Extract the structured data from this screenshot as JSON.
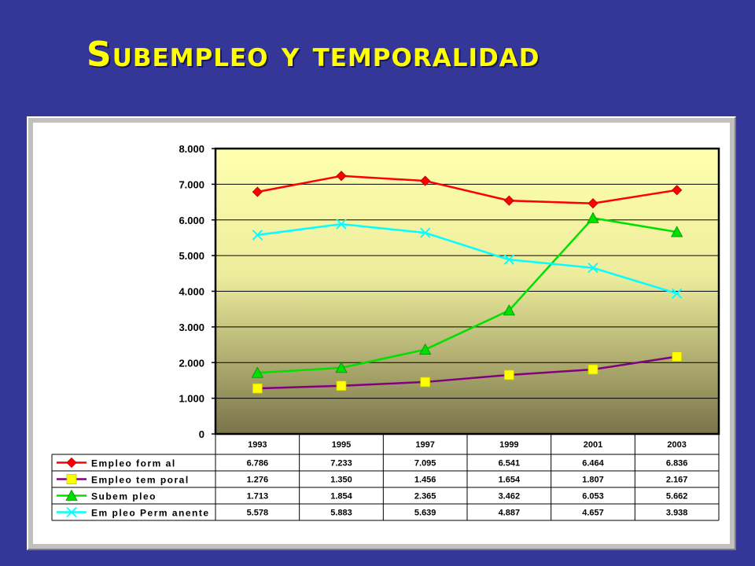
{
  "slide": {
    "title": "Subempleo y temporalidad"
  },
  "chart_data": {
    "type": "line",
    "title": "",
    "xlabel": "",
    "ylabel": "",
    "categories": [
      "1993",
      "1995",
      "1997",
      "1999",
      "2001",
      "2003"
    ],
    "ylim": [
      0,
      8000
    ],
    "yticks": [
      0,
      1000,
      2000,
      3000,
      4000,
      5000,
      6000,
      7000,
      8000
    ],
    "ytick_labels": [
      "0",
      "1.000",
      "2.000",
      "3.000",
      "4.000",
      "5.000",
      "6.000",
      "7.000",
      "8.000"
    ],
    "grid": true,
    "legend": "data-table-below",
    "series": [
      {
        "name": "Empleo form al",
        "color": "#ff0000",
        "marker": "diamond",
        "values": [
          6786,
          7233,
          7095,
          6541,
          6464,
          6836
        ],
        "labels": [
          "6.786",
          "7.233",
          "7.095",
          "6.541",
          "6.464",
          "6.836"
        ]
      },
      {
        "name": "Empleo tem poral",
        "color": "#800080",
        "marker_color": "#ffff00",
        "marker": "square",
        "values": [
          1276,
          1350,
          1456,
          1654,
          1807,
          2167
        ],
        "labels": [
          "1.276",
          "1.350",
          "1.456",
          "1.654",
          "1.807",
          "2.167"
        ]
      },
      {
        "name": "Subem pleo",
        "color": "#00e000",
        "marker": "triangle",
        "values": [
          1713,
          1854,
          2365,
          3462,
          6053,
          5662
        ],
        "labels": [
          "1.713",
          "1.854",
          "2.365",
          "3.462",
          "6.053",
          "5.662"
        ]
      },
      {
        "name": "Em pleo Perm anente",
        "color": "#00ffff",
        "marker": "x",
        "values": [
          5578,
          5883,
          5639,
          4887,
          4657,
          3938
        ],
        "labels": [
          "5.578",
          "5.883",
          "5.639",
          "4.887",
          "4.657",
          "3.938"
        ]
      }
    ]
  }
}
